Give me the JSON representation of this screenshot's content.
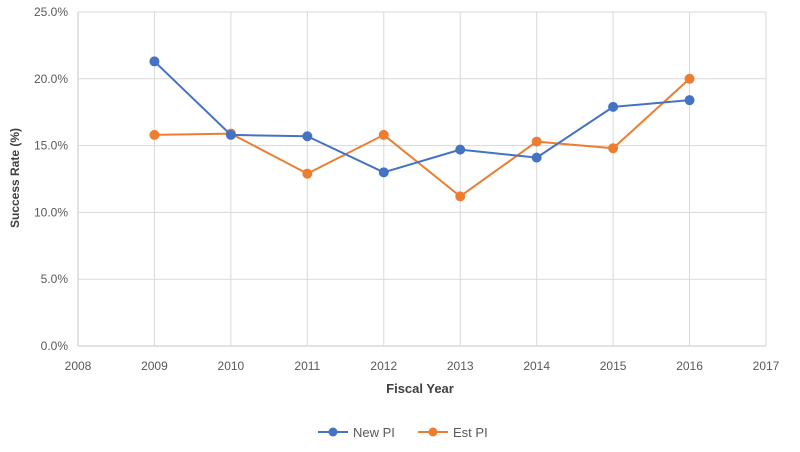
{
  "chart_data": {
    "type": "line",
    "xlabel": "Fiscal Year",
    "ylabel": "Success Rate (%)",
    "xlim": [
      2008,
      2017
    ],
    "ylim": [
      0,
      25
    ],
    "x_ticks": [
      "2008",
      "2009",
      "2010",
      "2011",
      "2012",
      "2013",
      "2014",
      "2015",
      "2016",
      "2017"
    ],
    "y_ticks": [
      "0.0%",
      "5.0%",
      "10.0%",
      "15.0%",
      "20.0%",
      "25.0%"
    ],
    "x": [
      2009,
      2010,
      2011,
      2012,
      2013,
      2014,
      2015,
      2016
    ],
    "series": [
      {
        "name": "New PI",
        "color": "#4472C4",
        "values": [
          21.3,
          15.8,
          15.7,
          13.0,
          14.7,
          14.1,
          17.9,
          18.4
        ]
      },
      {
        "name": "Est PI",
        "color": "#ED7D31",
        "values": [
          15.8,
          15.9,
          12.9,
          15.8,
          11.2,
          15.3,
          14.8,
          20.0
        ]
      }
    ],
    "grid": true,
    "gridline_color": "#D9D9D9",
    "legend": "bottom"
  }
}
